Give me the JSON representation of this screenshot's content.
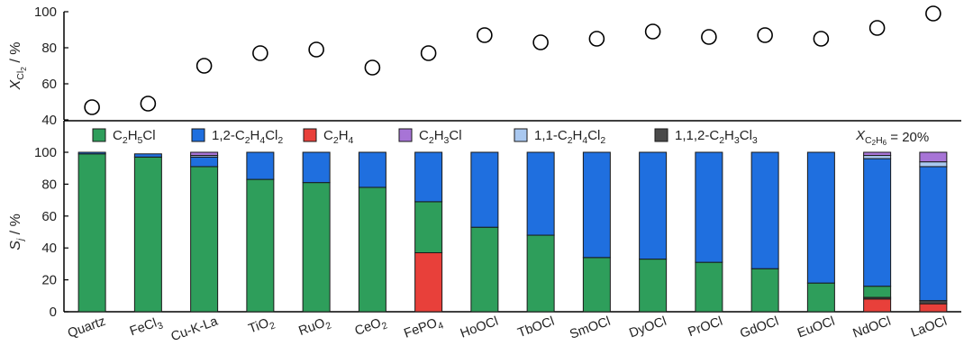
{
  "chart_data": [
    {
      "type": "scatter",
      "ylabel": "X_Cl2 / %",
      "ylabel_parts": {
        "main": "X",
        "sub": "Cl",
        "sub2": "2",
        "suffix": " / %"
      },
      "ylim": [
        40,
        100
      ],
      "yticks": [
        40,
        60,
        80,
        100
      ],
      "categories": [
        "Quartz",
        "FeCl3",
        "Cu-K-La",
        "TiO2",
        "RuO2",
        "CeO2",
        "FePO4",
        "HoOCl",
        "TbOCl",
        "SmOCl",
        "DyOCl",
        "PrOCl",
        "GdOCl",
        "EuOCl",
        "NdOCl",
        "LaOCl"
      ],
      "values": [
        47,
        49,
        70,
        77,
        79,
        69,
        77,
        87,
        83,
        85,
        89,
        86,
        87,
        85,
        91,
        99
      ],
      "marker": "open-circle"
    },
    {
      "type": "bar",
      "stacked": true,
      "ylabel": "S_j / %",
      "ylabel_parts": {
        "main": "S",
        "sub": "j",
        "suffix": " / %"
      },
      "ylim": [
        0,
        100
      ],
      "yticks": [
        0,
        20,
        40,
        60,
        80,
        100
      ],
      "annotation": {
        "main": "X",
        "sub": "C",
        "sub_i": "2",
        "sub_h": "H",
        "sub_i2": "6",
        "suffix": " = 20%"
      },
      "categories": [
        "Quartz",
        "FeCl3",
        "Cu-K-La",
        "TiO2",
        "RuO2",
        "CeO2",
        "FePO4",
        "HoOCl",
        "TbOCl",
        "SmOCl",
        "DyOCl",
        "PrOCl",
        "GdOCl",
        "EuOCl",
        "NdOCl",
        "LaOCl"
      ],
      "category_labels": [
        {
          "t": "Quartz",
          "sub": ""
        },
        {
          "t": "FeCl",
          "sub": "3"
        },
        {
          "t": "Cu-K-La",
          "sub": ""
        },
        {
          "t": "TiO",
          "sub": "2"
        },
        {
          "t": "RuO",
          "sub": "2"
        },
        {
          "t": "CeO",
          "sub": "2"
        },
        {
          "t": "FePO",
          "sub": "4"
        },
        {
          "t": "HoOCl",
          "sub": ""
        },
        {
          "t": "TbOCl",
          "sub": ""
        },
        {
          "t": "SmOCl",
          "sub": ""
        },
        {
          "t": "DyOCl",
          "sub": ""
        },
        {
          "t": "PrOCl",
          "sub": ""
        },
        {
          "t": "GdOCl",
          "sub": ""
        },
        {
          "t": "EuOCl",
          "sub": ""
        },
        {
          "t": "NdOCl",
          "sub": ""
        },
        {
          "t": "LaOCl",
          "sub": ""
        }
      ],
      "series": [
        {
          "name": "C2H4",
          "label_parts": [
            [
              "C",
              ""
            ],
            [
              "2",
              "s"
            ],
            [
              "H",
              ""
            ],
            [
              "4",
              "s"
            ]
          ],
          "color": "#e8403a",
          "values": [
            0,
            0,
            0,
            0,
            0,
            0,
            37,
            0,
            0,
            0,
            0,
            0,
            0,
            0,
            8,
            5
          ]
        },
        {
          "name": "1,1,2-C2H3Cl3",
          "label_parts": [
            [
              "1,1,2-C",
              ""
            ],
            [
              "2",
              "s"
            ],
            [
              "H",
              ""
            ],
            [
              "3",
              "s"
            ],
            [
              "Cl",
              ""
            ],
            [
              "3",
              "s"
            ]
          ],
          "color": "#4a4a4a",
          "values": [
            0,
            0,
            0,
            0,
            0,
            0,
            0,
            0,
            0,
            0,
            0,
            0,
            0,
            0,
            1,
            2
          ]
        },
        {
          "name": "C2H5Cl",
          "label_parts": [
            [
              "C",
              ""
            ],
            [
              "2",
              "s"
            ],
            [
              "H",
              ""
            ],
            [
              "5",
              "s"
            ],
            [
              "Cl",
              ""
            ]
          ],
          "color": "#2e9e5b",
          "values": [
            99,
            97,
            91,
            83,
            81,
            78,
            32,
            53,
            48,
            34,
            33,
            31,
            27,
            18,
            7,
            0
          ]
        },
        {
          "name": "1,2-C2H4Cl2",
          "label_parts": [
            [
              "1,2-C",
              ""
            ],
            [
              "2",
              "s"
            ],
            [
              "H",
              ""
            ],
            [
              "4",
              "s"
            ],
            [
              "Cl",
              ""
            ],
            [
              "2",
              "s"
            ]
          ],
          "color": "#1f6fdf",
          "values": [
            1,
            2,
            6,
            17,
            19,
            22,
            31,
            47,
            52,
            66,
            67,
            69,
            73,
            82,
            80,
            84
          ]
        },
        {
          "name": "1,1-C2H4Cl2",
          "label_parts": [
            [
              "1,1-C",
              ""
            ],
            [
              "2",
              "s"
            ],
            [
              "H",
              ""
            ],
            [
              "4",
              "s"
            ],
            [
              "Cl",
              ""
            ],
            [
              "2",
              "s"
            ]
          ],
          "color": "#a9c8f0",
          "values": [
            0,
            0,
            1,
            0,
            0,
            0,
            0,
            0,
            0,
            0,
            0,
            0,
            0,
            0,
            2,
            3
          ]
        },
        {
          "name": "C2H3Cl",
          "label_parts": [
            [
              "C",
              ""
            ],
            [
              "2",
              "s"
            ],
            [
              "H",
              ""
            ],
            [
              "3",
              "s"
            ],
            [
              "Cl",
              ""
            ]
          ],
          "color": "#a774d6",
          "values": [
            0,
            0,
            2,
            0,
            0,
            0,
            0,
            0,
            0,
            0,
            0,
            0,
            0,
            0,
            2,
            6
          ]
        }
      ],
      "legend_order": [
        "C2H5Cl",
        "1,2-C2H4Cl2",
        "C2H4",
        "C2H3Cl",
        "1,1-C2H4Cl2",
        "1,1,2-C2H3Cl3"
      ],
      "legend_placement": "top"
    }
  ]
}
